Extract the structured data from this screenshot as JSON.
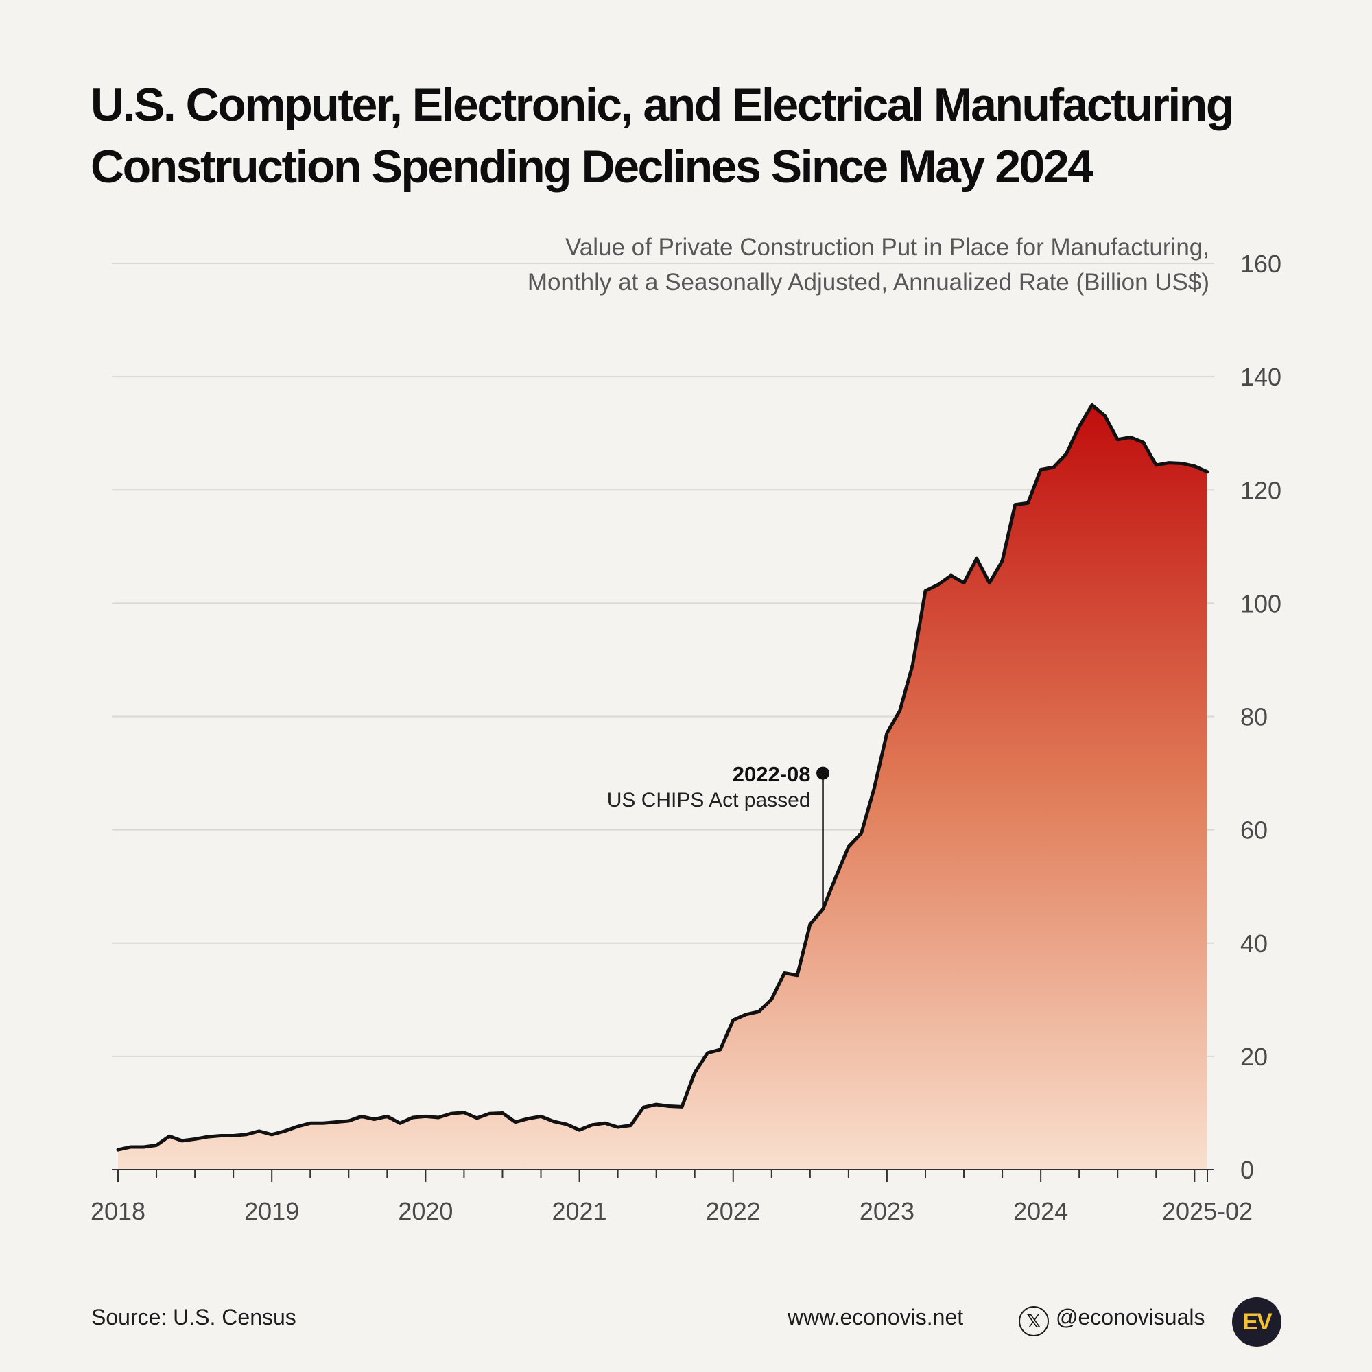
{
  "title": {
    "line1": "U.S. Computer, Electronic, and Electrical Manufacturing",
    "line2": "Construction Spending Declines Since May 2024"
  },
  "footer": {
    "source": "Source: U.S. Census",
    "website": "www.econovis.net",
    "handle": "@econovisuals",
    "x_icon": "x-logo-icon",
    "logo_text": "EV"
  },
  "colors": {
    "background": "#f4f3ef",
    "gradient_top": "#c00d0d",
    "gradient_mid": "#e07b57",
    "gradient_bottom": "#f9e0cf",
    "line": "#111111",
    "grid": "#d9d8d3"
  },
  "chart_data": {
    "type": "area",
    "title": "U.S. Computer, Electronic, and Electrical Manufacturing Construction Spending Declines Since May 2024",
    "subtitle": [
      "Value of Private Construction Put in Place for Manufacturing,",
      "Monthly at a Seasonally Adjusted, Annualized Rate (Billion US$)"
    ],
    "xlabel": "",
    "ylabel": "Billion US$",
    "ylim": [
      0,
      160
    ],
    "yticks": [
      0,
      20,
      40,
      60,
      80,
      100,
      120,
      140,
      160
    ],
    "x_start": "2018-01",
    "x_end": "2025-02",
    "x_tick_labels": [
      {
        "label": "2018",
        "month_index": 0
      },
      {
        "label": "2019",
        "month_index": 12
      },
      {
        "label": "2020",
        "month_index": 24
      },
      {
        "label": "2021",
        "month_index": 36
      },
      {
        "label": "2022",
        "month_index": 48
      },
      {
        "label": "2023",
        "month_index": 60
      },
      {
        "label": "2024",
        "month_index": 72
      },
      {
        "label": "2025-02",
        "month_index": 85
      }
    ],
    "minor_tick_interval_months": 3,
    "grid": true,
    "series": [
      {
        "name": "Computer, Electronic, and Electrical Manufacturing",
        "values": [
          3.5,
          4.0,
          4.0,
          4.3,
          5.9,
          5.1,
          5.4,
          5.8,
          6.0,
          6.0,
          6.2,
          6.8,
          6.2,
          6.8,
          7.6,
          8.2,
          8.2,
          8.4,
          8.6,
          9.4,
          8.9,
          9.4,
          8.2,
          9.2,
          9.4,
          9.2,
          9.9,
          10.1,
          9.1,
          9.9,
          10.0,
          8.4,
          9.0,
          9.4,
          8.5,
          8.0,
          7.0,
          7.9,
          8.2,
          7.5,
          7.8,
          11.0,
          11.5,
          11.2,
          11.1,
          17.1,
          20.6,
          21.2,
          26.4,
          27.4,
          27.9,
          30.1,
          34.7,
          34.3,
          43.3,
          46.0,
          51.6,
          57.0,
          59.4,
          67.3,
          77.1,
          81.0,
          89.1,
          102.2,
          103.3,
          104.9,
          103.6,
          107.9,
          103.6,
          107.5,
          117.4,
          117.7,
          123.6,
          124.0,
          126.4,
          131.2,
          135.0,
          133.1,
          128.9,
          129.3,
          128.4,
          124.4,
          124.8,
          124.7,
          124.2,
          123.2
        ]
      }
    ],
    "annotation": {
      "date": "2022-08",
      "text": "US CHIPS Act passed",
      "month_index": 55,
      "marker_value": 70
    }
  }
}
